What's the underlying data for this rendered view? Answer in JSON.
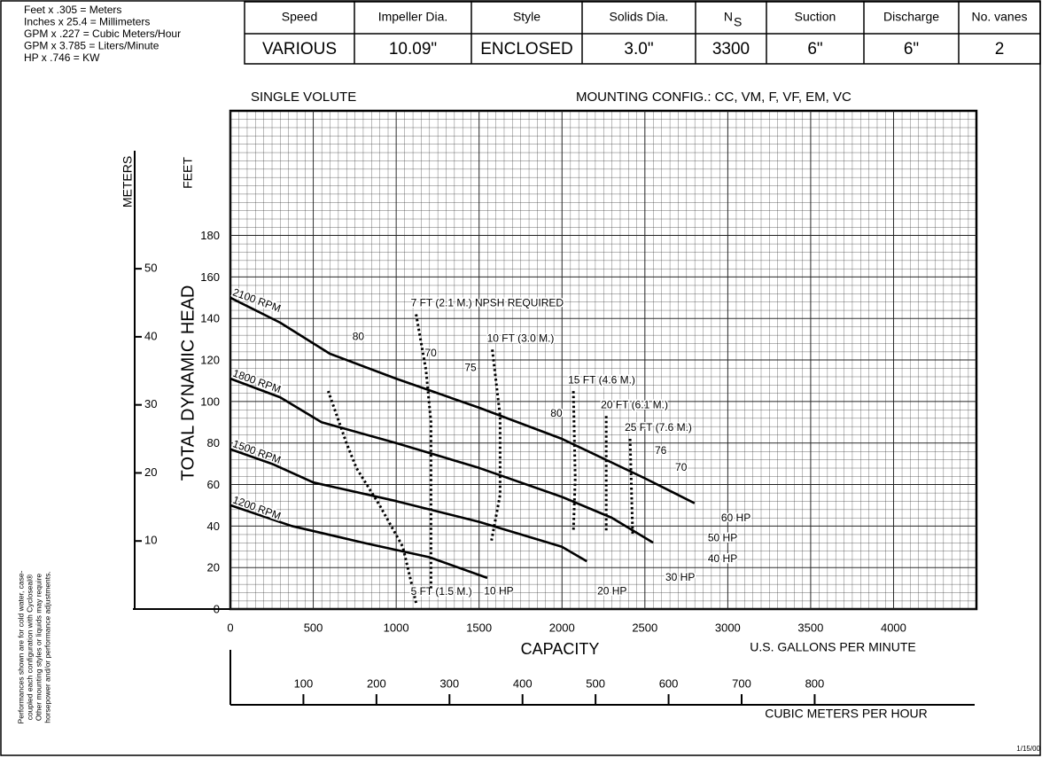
{
  "notes": [
    "Feet x .305 = Meters",
    "Inches x 25.4 = Millimeters",
    "GPM x .227 = Cubic Meters/Hour",
    "GPM x 3.785 = Liters/Minute",
    "HP x .746 = KW"
  ],
  "spec_table": {
    "headers": [
      "Speed",
      "Impeller Dia.",
      "Style",
      "Solids Dia.",
      "N",
      "Suction",
      "Discharge",
      "No. vanes"
    ],
    "header_subscript": "S",
    "values": [
      "VARIOUS",
      "10.09\"",
      "ENCLOSED",
      "3.0\"",
      "3300",
      "6\"",
      "6\"",
      "2"
    ]
  },
  "side_note": [
    "Performances shown are for cold water, case-",
    "coupled each configuration with Cycloseal®",
    "Other mounting styles or liquids may require",
    "horsepower and/or performance adjustments."
  ],
  "date": "1/15/00",
  "chart_data": {
    "type": "line",
    "subtitle_left": "SINGLE VOLUTE",
    "subtitle_right": "MOUNTING CONFIG.:  CC, VM, F, VF, EM, VC",
    "ylabel": "TOTAL DYNAMIC HEAD",
    "yunit": "FEET",
    "y2unit": "METERS",
    "xlabel": "CAPACITY",
    "xunit": "U.S. GALLONS PER MINUTE",
    "x2unit": "CUBIC METERS PER HOUR",
    "xlim": [
      0,
      4500
    ],
    "xticks": [
      0,
      500,
      1000,
      1500,
      2000,
      2500,
      3000,
      3500,
      4000
    ],
    "ylim": [
      0,
      240
    ],
    "yticks": [
      0,
      20,
      40,
      60,
      80,
      100,
      120,
      140,
      160,
      180
    ],
    "y2lim": [
      0,
      73.2
    ],
    "y2ticks": [
      10,
      20,
      30,
      40,
      50
    ],
    "x2lim": [
      0,
      1021.5
    ],
    "x2ticks": [
      100,
      200,
      300,
      400,
      500,
      600,
      700,
      800
    ],
    "grid": true,
    "series": [
      {
        "name": "2100 RPM",
        "color": "#000000",
        "style": "solid",
        "x": [
          0,
          300,
          600,
          1000,
          1500,
          2000,
          2500,
          2800
        ],
        "values": [
          150,
          138,
          123,
          111,
          97,
          82,
          63,
          51
        ]
      },
      {
        "name": "1800 RPM",
        "color": "#000000",
        "style": "solid",
        "x": [
          0,
          300,
          550,
          1000,
          1500,
          2000,
          2300,
          2550
        ],
        "values": [
          111,
          102,
          90,
          80,
          68,
          54,
          44,
          32
        ]
      },
      {
        "name": "1500 RPM",
        "color": "#000000",
        "style": "solid",
        "x": [
          0,
          250,
          500,
          1000,
          1500,
          2000,
          2150
        ],
        "values": [
          77,
          70,
          61,
          52,
          42,
          30,
          23
        ]
      },
      {
        "name": "1200 RPM",
        "color": "#000000",
        "style": "solid",
        "x": [
          0,
          370,
          800,
          1200,
          1550
        ],
        "values": [
          50,
          40,
          32,
          25,
          15
        ]
      },
      {
        "name": "5 FT (1.5 M.)",
        "color": "#000000",
        "style": "dotted",
        "x": [
          1120,
          1040,
          900,
          760,
          700,
          590
        ],
        "values": [
          3,
          30,
          50,
          68,
          80,
          105
        ]
      },
      {
        "name": "7 FT (2.1 M.) NPSH REQUIRED",
        "color": "#000000",
        "style": "dotted",
        "x": [
          1120,
          1180,
          1210,
          1210
        ],
        "values": [
          142,
          115,
          90,
          10
        ]
      },
      {
        "name": "10 FT (3.0 M.)",
        "color": "#000000",
        "style": "dotted",
        "x": [
          1580,
          1627,
          1627,
          1575
        ],
        "values": [
          125,
          93,
          55,
          33
        ]
      },
      {
        "name": "15 FT (4.6 M.)",
        "color": "#000000",
        "style": "dotted",
        "x": [
          2069,
          2080,
          2069
        ],
        "values": [
          105,
          63,
          37
        ]
      },
      {
        "name": "20 FT (6.1 M.)",
        "color": "#000000",
        "style": "dotted",
        "x": [
          2267,
          2267
        ],
        "values": [
          93,
          37
        ]
      },
      {
        "name": "25 FT (7.6 M.)",
        "color": "#000000",
        "style": "dotted",
        "x": [
          2411,
          2427
        ],
        "values": [
          82,
          35
        ]
      }
    ],
    "annotations": [
      {
        "text": "60 HP",
        "x": 2960,
        "y": 43.6
      },
      {
        "text": "50 HP",
        "x": 2880,
        "y": 34
      },
      {
        "text": "40 HP",
        "x": 2880,
        "y": 24
      },
      {
        "text": "30 HP",
        "x": 2624,
        "y": 15
      },
      {
        "text": "20 HP",
        "x": 2213,
        "y": 8.5
      },
      {
        "text": "10 HP",
        "x": 1530,
        "y": 8.5
      },
      {
        "text": "80",
        "x": 736,
        "y": 131
      },
      {
        "text": "70",
        "x": 1173,
        "y": 123
      },
      {
        "text": "75",
        "x": 1413,
        "y": 116
      },
      {
        "text": "80",
        "x": 1931,
        "y": 94
      },
      {
        "text": "76",
        "x": 2560,
        "y": 76
      },
      {
        "text": "70",
        "x": 2683,
        "y": 68
      }
    ]
  }
}
